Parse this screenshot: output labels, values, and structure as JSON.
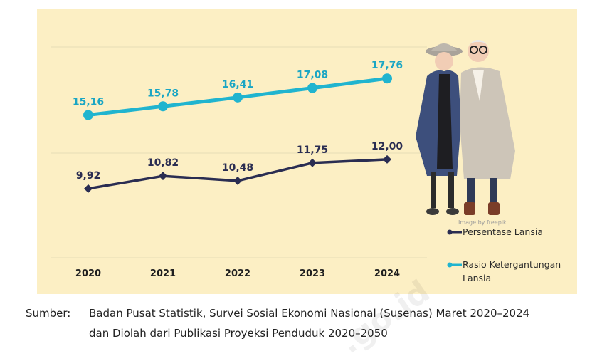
{
  "chart_data": {
    "type": "line",
    "categories": [
      "2020",
      "2021",
      "2022",
      "2023",
      "2024"
    ],
    "series": [
      {
        "name": "Persentase Lansia",
        "values": [
          9.92,
          10.82,
          10.48,
          11.75,
          12.0
        ],
        "labels": [
          "9,92",
          "10,82",
          "10,48",
          "11,75",
          "12,00"
        ],
        "color": "#2a2d52"
      },
      {
        "name": "Rasio Ketergantungan Lansia",
        "values": [
          15.16,
          15.78,
          16.41,
          17.08,
          17.76
        ],
        "labels": [
          "15,16",
          "15,78",
          "16,41",
          "17,08",
          "17,76"
        ],
        "color": "#20b4cf"
      }
    ],
    "ylim": [
      5,
      20
    ],
    "grid": true,
    "legend_position": "right",
    "legend": {
      "line1": "Persentase Lansia",
      "line2a": "Rasio Ketergantungan",
      "line2b": "Lansia"
    }
  },
  "illustration": {
    "credit": "Image by freepik",
    "icon": "elderly-couple-illustration"
  },
  "source": {
    "label": "Sumber:",
    "line1": "Badan Pusat Statistik, Survei Sosial Ekonomi Nasional (Susenas) Maret 2020–2024",
    "line2": "dan Diolah dari Publikasi Proyeksi Penduduk 2020–2050"
  },
  "colors": {
    "background": "#fcefc4",
    "dark_series": "#2a2d52",
    "cyan_series": "#20b4cf"
  }
}
